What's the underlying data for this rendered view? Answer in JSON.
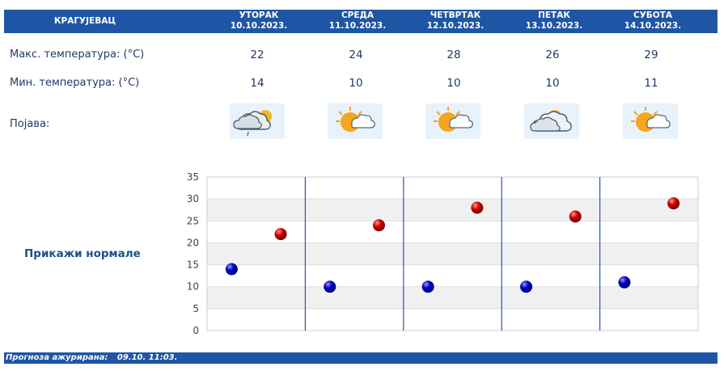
{
  "header": {
    "city": "КРАГУЈЕВАЦ",
    "days": [
      {
        "name": "УТОРАК",
        "date": "10.10.2023."
      },
      {
        "name": "СРЕДА",
        "date": "11.10.2023."
      },
      {
        "name": "ЧЕТВРТАК",
        "date": "12.10.2023."
      },
      {
        "name": "ПЕТАК",
        "date": "13.10.2023."
      },
      {
        "name": "СУБОТА",
        "date": "14.10.2023."
      }
    ]
  },
  "rows": {
    "max_label": "Макс. температура: (°C)",
    "min_label": "Мин. температура: (°C)",
    "phenomenon_label": "Појава:",
    "max": [
      "22",
      "24",
      "28",
      "26",
      "29"
    ],
    "min": [
      "14",
      "10",
      "10",
      "10",
      "11"
    ],
    "icons": [
      "cloudy-rain-sun-icon",
      "sun-behind-cloud-icon",
      "sun-behind-cloud-icon",
      "cloudy-icon",
      "sun-behind-cloud-icon"
    ]
  },
  "normals_link": "Прикажи нормале",
  "footer": {
    "label": "Прогноза ажурирана:",
    "value": "09.10. 11:03."
  },
  "colors": {
    "header_bg": "#1e56a5",
    "max_marker": "#cc0000",
    "min_marker": "#0000bb",
    "text": "#1f3a67"
  },
  "chart_data": {
    "type": "scatter",
    "ylim": [
      0,
      35
    ],
    "yticks": [
      0,
      5,
      10,
      15,
      20,
      25,
      30,
      35
    ],
    "grid": true,
    "categories": [
      "10.10.2023.",
      "11.10.2023.",
      "12.10.2023.",
      "13.10.2023.",
      "14.10.2023."
    ],
    "series": [
      {
        "key": "min",
        "values": [
          14,
          10,
          10,
          10,
          11
        ],
        "color": "#0000bb"
      },
      {
        "key": "max",
        "values": [
          22,
          24,
          28,
          26,
          29
        ],
        "color": "#cc0000"
      }
    ]
  }
}
